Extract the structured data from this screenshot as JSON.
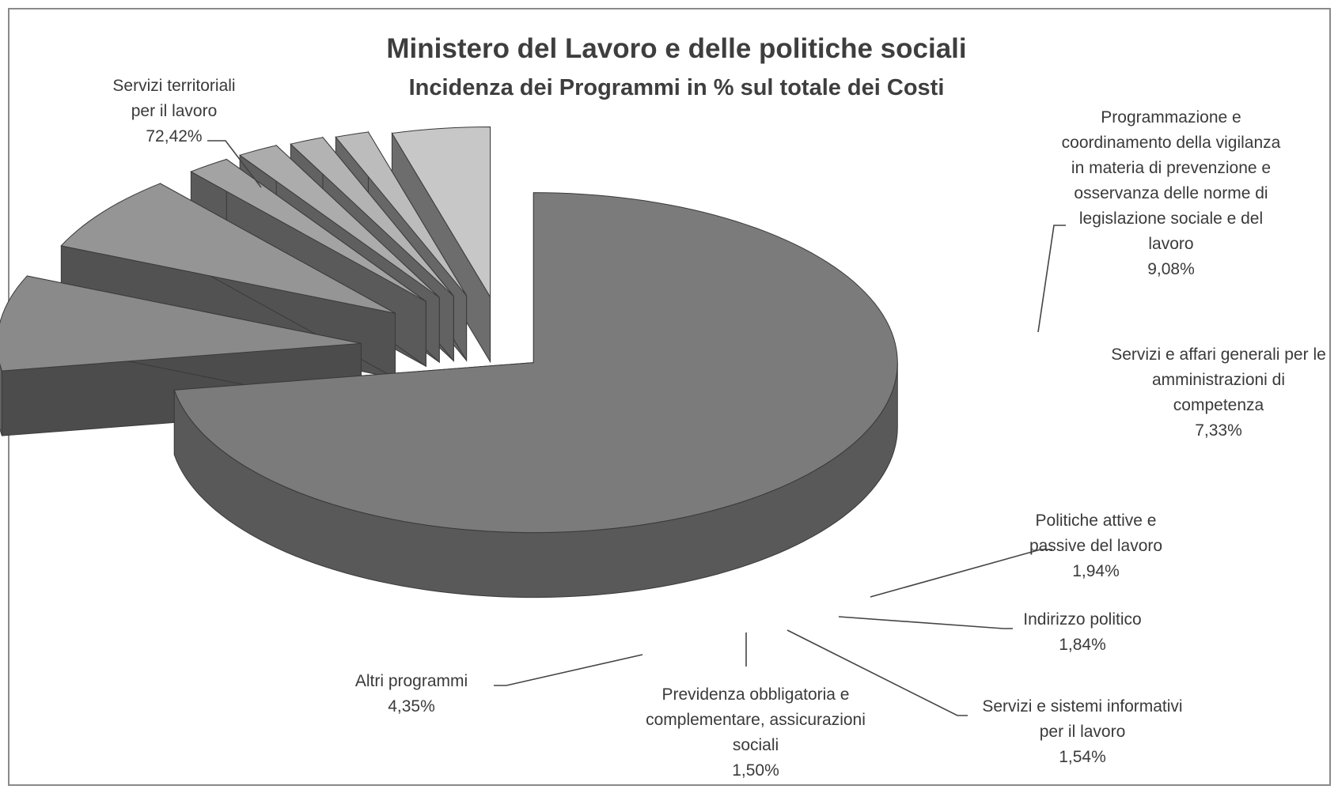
{
  "chart_data": {
    "type": "pie",
    "style": "3d-exploded",
    "title": "Ministero del Lavoro e delle politiche sociali",
    "subtitle": "Incidenza dei Programmi in % sul totale dei Costi",
    "unit": "%",
    "slices": [
      {
        "label": "Servizi territoriali per il lavoro",
        "value": 72.42,
        "display": "72,42%",
        "color": "#7b7b7b"
      },
      {
        "label": "Programmazione e coordinamento della vigilanza in materia di prevenzione e osservanza delle norme di legislazione sociale e del lavoro",
        "value": 9.08,
        "display": "9,08%",
        "color": "#8a8a8a"
      },
      {
        "label": "Servizi e affari generali per le amministrazioni di competenza",
        "value": 7.33,
        "display": "7,33%",
        "color": "#959595"
      },
      {
        "label": "Politiche attive e passive del lavoro",
        "value": 1.94,
        "display": "1,94%",
        "color": "#a3a3a3"
      },
      {
        "label": "Indirizzo politico",
        "value": 1.84,
        "display": "1,84%",
        "color": "#acacac"
      },
      {
        "label": "Servizi e sistemi informativi per il lavoro",
        "value": 1.54,
        "display": "1,54%",
        "color": "#b3b3b3"
      },
      {
        "label": "Previdenza obbligatoria e complementare, assicurazioni sociali",
        "value": 1.5,
        "display": "1,50%",
        "color": "#bcbcbc"
      },
      {
        "label": "Altri programmi",
        "value": 4.35,
        "display": "4,35%",
        "color": "#c7c7c7"
      }
    ]
  },
  "labels": [
    {
      "lines": [
        "Servizi territoriali",
        "per il lavoro",
        "72,42%"
      ]
    },
    {
      "lines": [
        "Programmazione e",
        "coordinamento della vigilanza",
        "in materia di prevenzione e",
        "osservanza  delle norme di",
        "legislazione sociale e del",
        "lavoro",
        "9,08%"
      ]
    },
    {
      "lines": [
        "Servizi e affari generali per le",
        "amministrazioni di",
        "competenza",
        "7,33%"
      ]
    },
    {
      "lines": [
        "Politiche attive e",
        "passive del lavoro",
        "1,94%"
      ]
    },
    {
      "lines": [
        "Indirizzo politico",
        "1,84%"
      ]
    },
    {
      "lines": [
        "Servizi e sistemi informativi",
        "per il lavoro",
        "1,54%"
      ]
    },
    {
      "lines": [
        "Previdenza obbligatoria e",
        "complementare, assicurazioni",
        "sociali",
        "1,50%"
      ]
    },
    {
      "lines": [
        "Altri programmi",
        "4,35%"
      ]
    }
  ]
}
